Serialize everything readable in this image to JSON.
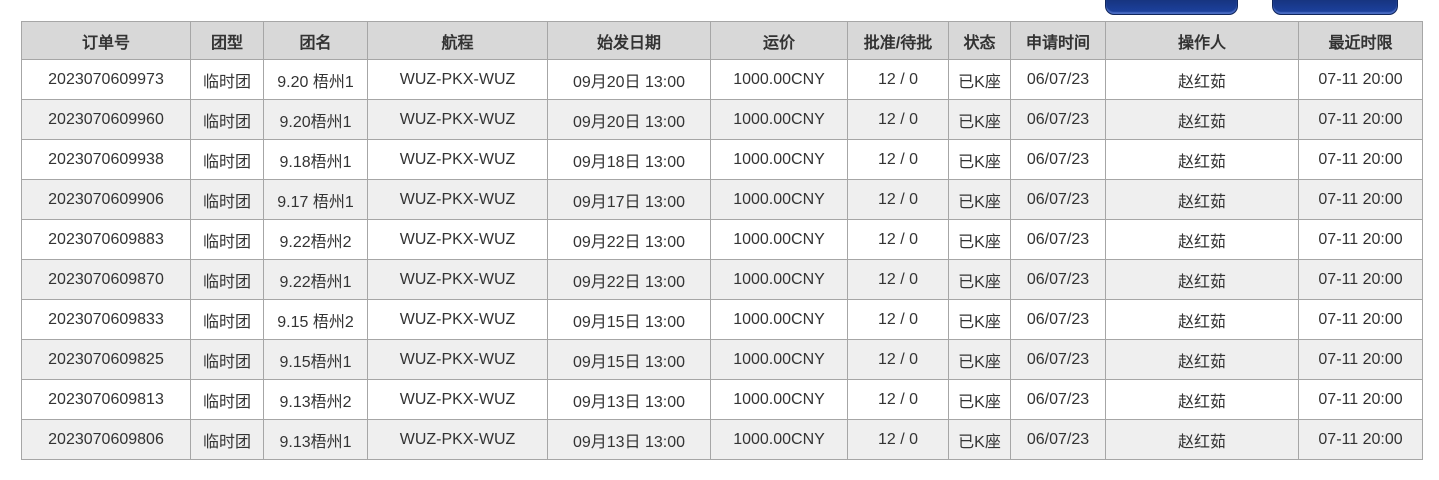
{
  "toolbar": {
    "buttons": [
      {
        "label": ""
      },
      {
        "label": ""
      }
    ],
    "button_color": "#1b3e9b"
  },
  "table": {
    "columns": [
      "订单号",
      "团型",
      "团名",
      "航程",
      "始发日期",
      "运价",
      "批准/待批",
      "状态",
      "申请时间",
      "操作人",
      "最近时限"
    ],
    "rows": [
      [
        "2023070609973",
        "临时团",
        "9.20 梧州1",
        "WUZ-PKX-WUZ",
        "09月20日 13:00",
        "1000.00CNY",
        "12 / 0",
        "已K座",
        "06/07/23",
        "赵红茹",
        "07-11 20:00"
      ],
      [
        "2023070609960",
        "临时团",
        "9.20梧州1",
        "WUZ-PKX-WUZ",
        "09月20日 13:00",
        "1000.00CNY",
        "12 / 0",
        "已K座",
        "06/07/23",
        "赵红茹",
        "07-11 20:00"
      ],
      [
        "2023070609938",
        "临时团",
        "9.18梧州1",
        "WUZ-PKX-WUZ",
        "09月18日 13:00",
        "1000.00CNY",
        "12 / 0",
        "已K座",
        "06/07/23",
        "赵红茹",
        "07-11 20:00"
      ],
      [
        "2023070609906",
        "临时团",
        "9.17 梧州1",
        "WUZ-PKX-WUZ",
        "09月17日 13:00",
        "1000.00CNY",
        "12 / 0",
        "已K座",
        "06/07/23",
        "赵红茹",
        "07-11 20:00"
      ],
      [
        "2023070609883",
        "临时团",
        "9.22梧州2",
        "WUZ-PKX-WUZ",
        "09月22日 13:00",
        "1000.00CNY",
        "12 / 0",
        "已K座",
        "06/07/23",
        "赵红茹",
        "07-11 20:00"
      ],
      [
        "2023070609870",
        "临时团",
        "9.22梧州1",
        "WUZ-PKX-WUZ",
        "09月22日 13:00",
        "1000.00CNY",
        "12 / 0",
        "已K座",
        "06/07/23",
        "赵红茹",
        "07-11 20:00"
      ],
      [
        "2023070609833",
        "临时团",
        "9.15 梧州2",
        "WUZ-PKX-WUZ",
        "09月15日 13:00",
        "1000.00CNY",
        "12 / 0",
        "已K座",
        "06/07/23",
        "赵红茹",
        "07-11 20:00"
      ],
      [
        "2023070609825",
        "临时团",
        "9.15梧州1",
        "WUZ-PKX-WUZ",
        "09月15日 13:00",
        "1000.00CNY",
        "12 / 0",
        "已K座",
        "06/07/23",
        "赵红茹",
        "07-11 20:00"
      ],
      [
        "2023070609813",
        "临时团",
        "9.13梧州2",
        "WUZ-PKX-WUZ",
        "09月13日 13:00",
        "1000.00CNY",
        "12 / 0",
        "已K座",
        "06/07/23",
        "赵红茹",
        "07-11 20:00"
      ],
      [
        "2023070609806",
        "临时团",
        "9.13梧州1",
        "WUZ-PKX-WUZ",
        "09月13日 13:00",
        "1000.00CNY",
        "12 / 0",
        "已K座",
        "06/07/23",
        "赵红茹",
        "07-11 20:00"
      ]
    ]
  },
  "colors": {
    "header_bg": "#d8d8d8",
    "row_bg": "#ffffff",
    "row_alt_bg": "#efefef",
    "border": "#a6a6a6",
    "text": "#333333",
    "button_blue": "#1b3e9b"
  }
}
